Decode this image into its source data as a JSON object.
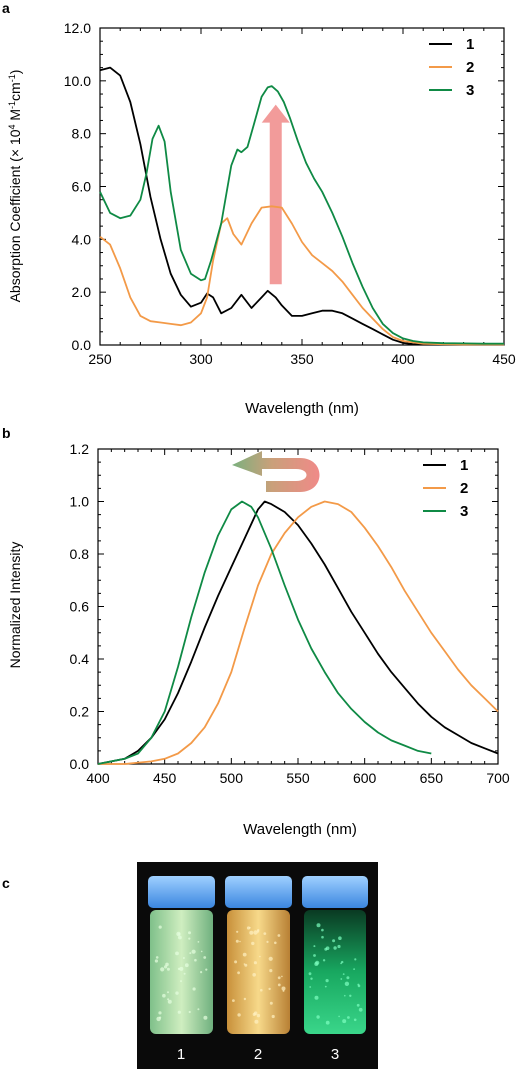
{
  "panel_labels": [
    "a",
    "b",
    "c"
  ],
  "colors": {
    "series1": "#000000",
    "series2": "#f39a48",
    "series3": "#0f8a45",
    "arrow_red": "#f08a88",
    "arrow_green": "#7bb07e",
    "photo_bg": "#0a0a0a",
    "cap": "#5ea8ff"
  },
  "chart_data": [
    {
      "type": "line",
      "panel": "a",
      "xlabel": "Wavelength (nm)",
      "ylabel": "Absorption Coefficient (× 10",
      "ylabel_sup": "4",
      "ylabel_mid": " M",
      "ylabel_sup2": "-1",
      "ylabel_mid2": "cm",
      "ylabel_sup3": "-1",
      "ylabel_end": ")",
      "xlim": [
        250,
        450
      ],
      "ylim": [
        0,
        12
      ],
      "xticks": [
        "250",
        "300",
        "350",
        "400",
        "450"
      ],
      "xtick_values": [
        250,
        300,
        350,
        400,
        450
      ],
      "yticks": [
        "0.0",
        "2.0",
        "4.0",
        "6.0",
        "8.0",
        "10.0",
        "12.0"
      ],
      "ytick_values": [
        0,
        2,
        4,
        6,
        8,
        10,
        12
      ],
      "legend_position": "top-right",
      "annotation": "red arrow pointing up",
      "series": [
        {
          "name": "1",
          "color": "#000000",
          "x": [
            250,
            255,
            260,
            265,
            270,
            275,
            280,
            285,
            290,
            295,
            300,
            303,
            306,
            310,
            315,
            320,
            325,
            330,
            333,
            337,
            340,
            345,
            350,
            355,
            360,
            365,
            370,
            375,
            380,
            385,
            390,
            395,
            400,
            405,
            410,
            420,
            430,
            440,
            450
          ],
          "y": [
            10.4,
            10.5,
            10.2,
            9.2,
            7.6,
            5.6,
            4.0,
            2.7,
            1.9,
            1.45,
            1.6,
            1.95,
            1.8,
            1.2,
            1.4,
            1.9,
            1.4,
            1.8,
            2.05,
            1.8,
            1.5,
            1.1,
            1.1,
            1.2,
            1.3,
            1.3,
            1.2,
            1.0,
            0.8,
            0.6,
            0.4,
            0.2,
            0.08,
            0.03,
            0.02,
            0.02,
            0.02,
            0.02,
            0.02
          ]
        },
        {
          "name": "2",
          "color": "#f39a48",
          "x": [
            250,
            255,
            260,
            265,
            270,
            275,
            280,
            285,
            290,
            295,
            300,
            303,
            306,
            310,
            313,
            316,
            320,
            325,
            330,
            335,
            340,
            345,
            350,
            355,
            360,
            365,
            370,
            375,
            380,
            385,
            390,
            395,
            400,
            410,
            420,
            430,
            440,
            450
          ],
          "y": [
            4.1,
            3.8,
            2.9,
            1.8,
            1.1,
            0.9,
            0.85,
            0.8,
            0.75,
            0.85,
            1.2,
            1.8,
            3.2,
            4.6,
            4.8,
            4.2,
            3.8,
            4.6,
            5.2,
            5.25,
            5.2,
            4.6,
            3.9,
            3.4,
            3.1,
            2.8,
            2.4,
            1.9,
            1.4,
            1.0,
            0.6,
            0.3,
            0.15,
            0.05,
            0.03,
            0.02,
            0.02,
            0.02
          ]
        },
        {
          "name": "3",
          "color": "#0f8a45",
          "x": [
            250,
            255,
            260,
            265,
            270,
            273,
            276,
            279,
            282,
            285,
            290,
            295,
            300,
            302,
            305,
            310,
            315,
            318,
            320,
            323,
            326,
            330,
            333,
            335,
            338,
            341,
            344,
            348,
            352,
            356,
            360,
            365,
            370,
            375,
            380,
            385,
            390,
            395,
            400,
            405,
            410,
            420,
            430,
            440,
            450
          ],
          "y": [
            5.8,
            5.0,
            4.8,
            4.9,
            5.5,
            6.5,
            7.8,
            8.3,
            7.7,
            5.8,
            3.6,
            2.7,
            2.45,
            2.5,
            3.2,
            4.6,
            6.8,
            7.4,
            7.3,
            7.5,
            8.3,
            9.4,
            9.75,
            9.8,
            9.6,
            9.2,
            8.6,
            7.7,
            6.9,
            6.3,
            5.8,
            5.0,
            4.1,
            3.1,
            2.2,
            1.4,
            0.8,
            0.45,
            0.25,
            0.15,
            0.1,
            0.07,
            0.06,
            0.05,
            0.05
          ]
        }
      ]
    },
    {
      "type": "line",
      "panel": "b",
      "xlabel": "Wavelength (nm)",
      "ylabel": "Normalized Intensity",
      "xlim": [
        400,
        700
      ],
      "ylim": [
        0,
        1.2
      ],
      "xticks": [
        "400",
        "450",
        "500",
        "550",
        "600",
        "650",
        "700"
      ],
      "xtick_values": [
        400,
        450,
        500,
        550,
        600,
        650,
        700
      ],
      "yticks": [
        "0.0",
        "0.2",
        "0.4",
        "0.6",
        "0.8",
        "1.0",
        "1.2"
      ],
      "ytick_values": [
        0,
        0.2,
        0.4,
        0.6,
        0.8,
        1.0,
        1.2
      ],
      "legend_position": "top-right",
      "annotation": "curved arrow pointing left",
      "series": [
        {
          "name": "1",
          "color": "#000000",
          "x": [
            400,
            410,
            420,
            430,
            440,
            450,
            460,
            470,
            480,
            490,
            500,
            510,
            520,
            525,
            530,
            540,
            550,
            560,
            570,
            580,
            590,
            600,
            610,
            620,
            630,
            640,
            650,
            660,
            670,
            680,
            690,
            700
          ],
          "y": [
            0.0,
            0.01,
            0.02,
            0.05,
            0.1,
            0.17,
            0.27,
            0.39,
            0.52,
            0.64,
            0.75,
            0.86,
            0.97,
            1.0,
            0.99,
            0.96,
            0.91,
            0.84,
            0.76,
            0.67,
            0.58,
            0.5,
            0.42,
            0.35,
            0.29,
            0.23,
            0.18,
            0.14,
            0.11,
            0.08,
            0.06,
            0.04
          ]
        },
        {
          "name": "2",
          "color": "#f39a48",
          "x": [
            400,
            420,
            440,
            450,
            460,
            470,
            480,
            490,
            500,
            510,
            520,
            530,
            540,
            550,
            560,
            570,
            580,
            590,
            600,
            610,
            620,
            630,
            640,
            650,
            660,
            670,
            680,
            690,
            700
          ],
          "y": [
            0.0,
            0.0,
            0.01,
            0.02,
            0.04,
            0.08,
            0.14,
            0.23,
            0.35,
            0.52,
            0.68,
            0.8,
            0.88,
            0.94,
            0.98,
            1.0,
            0.99,
            0.96,
            0.9,
            0.83,
            0.75,
            0.66,
            0.58,
            0.5,
            0.43,
            0.36,
            0.3,
            0.25,
            0.2
          ]
        },
        {
          "name": "3",
          "color": "#0f8a45",
          "x": [
            400,
            410,
            420,
            430,
            440,
            450,
            460,
            470,
            480,
            490,
            500,
            508,
            515,
            520,
            530,
            540,
            550,
            560,
            570,
            580,
            590,
            600,
            610,
            620,
            630,
            640,
            650
          ],
          "y": [
            0.0,
            0.01,
            0.02,
            0.04,
            0.1,
            0.2,
            0.37,
            0.56,
            0.73,
            0.87,
            0.97,
            1.0,
            0.98,
            0.94,
            0.82,
            0.68,
            0.55,
            0.44,
            0.35,
            0.27,
            0.21,
            0.16,
            0.12,
            0.09,
            0.07,
            0.05,
            0.04
          ]
        }
      ]
    }
  ],
  "photo": {
    "vial_labels": [
      "1",
      "2",
      "3"
    ],
    "vial_glow_colors": [
      "#a8d9a0",
      "#e8b85a",
      "#1fb86a"
    ]
  }
}
